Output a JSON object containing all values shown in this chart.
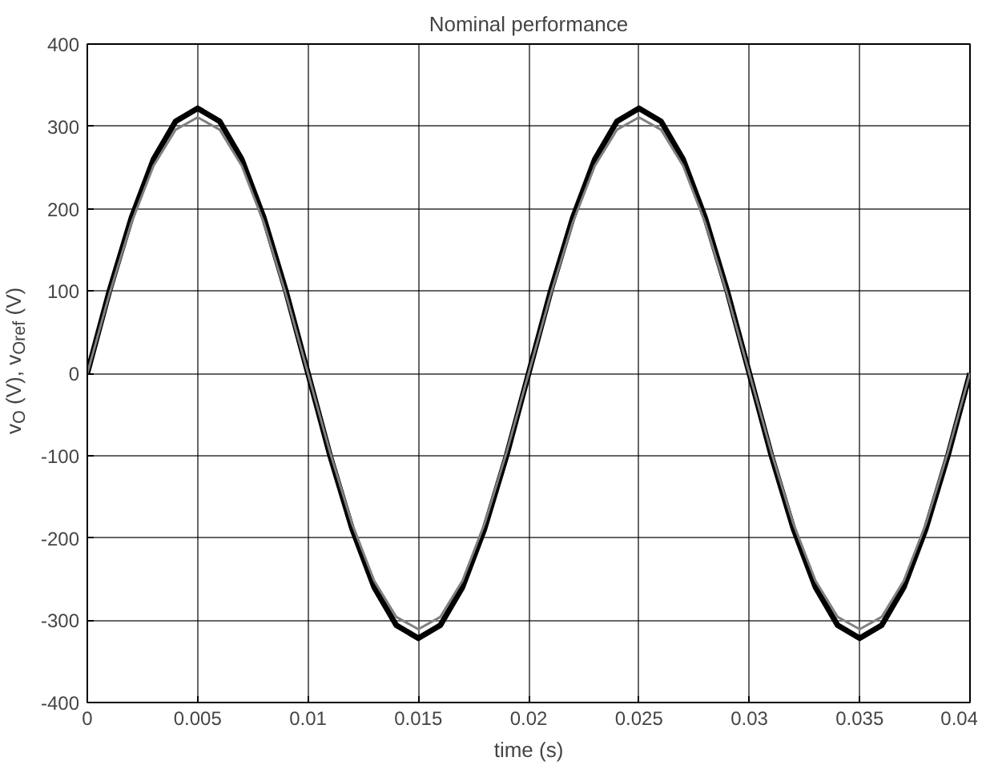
{
  "chart_data": {
    "type": "line",
    "title": "Nominal performance",
    "xlabel": "time (s)",
    "ylabel": "v$_{O}$ (V), v$_{Oref}$ (V)",
    "x": [
      0,
      0.001,
      0.002,
      0.003,
      0.004,
      0.005,
      0.006,
      0.007,
      0.008,
      0.009,
      0.01,
      0.011,
      0.012,
      0.013,
      0.014,
      0.015,
      0.016,
      0.017,
      0.018,
      0.019,
      0.02,
      0.021,
      0.022,
      0.023,
      0.024,
      0.025,
      0.026,
      0.027,
      0.028,
      0.029,
      0.03,
      0.031,
      0.032,
      0.033,
      0.034,
      0.035,
      0.036,
      0.037,
      0.038,
      0.039,
      0.04
    ],
    "series": [
      {
        "color": "#000000",
        "values": [
          0,
          100,
          189,
          260,
          306,
          322,
          306,
          260,
          189,
          100,
          0,
          -100,
          -189,
          -260,
          -306,
          -322,
          -306,
          -260,
          -189,
          -100,
          0,
          100,
          189,
          260,
          306,
          322,
          306,
          260,
          189,
          100,
          0,
          -100,
          -189,
          -260,
          -306,
          -322,
          -306,
          -260,
          -189,
          -100,
          0
        ]
      },
      {
        "color": "#808080",
        "values": [
          0,
          96,
          183,
          252,
          296,
          311,
          296,
          252,
          183,
          96,
          0,
          -96,
          -183,
          -252,
          -296,
          -311,
          -296,
          -252,
          -183,
          -96,
          0,
          96,
          183,
          252,
          296,
          311,
          296,
          252,
          183,
          96,
          0,
          -96,
          -183,
          -252,
          -296,
          -311,
          -296,
          -252,
          -183,
          -96,
          0
        ]
      }
    ],
    "xlim": [
      0,
      0.04
    ],
    "xticks": [
      0,
      0.005,
      0.01,
      0.015,
      0.02,
      0.025,
      0.03,
      0.035,
      0.04
    ],
    "ylim": [
      -400,
      400
    ],
    "yticks": [
      -400,
      -300,
      -200,
      -100,
      0,
      100,
      200,
      300,
      400
    ],
    "grid": true
  }
}
